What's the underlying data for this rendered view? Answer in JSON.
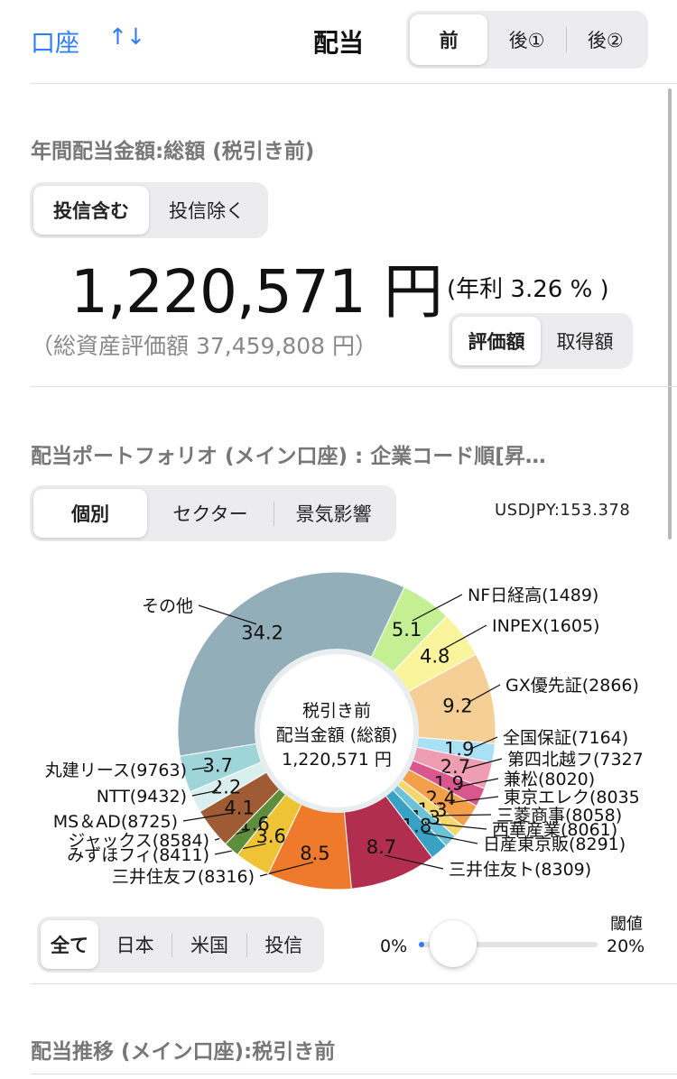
{
  "header": {
    "account_label": "口座",
    "sort_icon_glyph": "↑↓",
    "title": "配当",
    "tabs": [
      "前",
      "後①",
      "後②"
    ],
    "selected_tab": 0
  },
  "annual": {
    "section_title": "年間配当金額:総額 (税引き前)",
    "toggle": [
      "投信含む",
      "投信除く"
    ],
    "selected_toggle": 0,
    "amount": "1,220,571 円",
    "yield": "(年利 3.26 % )",
    "total_assets": "（総資産評価額 37,459,808 円）",
    "basis_toggle": [
      "評価額",
      "取得額"
    ],
    "selected_basis": 0
  },
  "portfolio": {
    "section_title": "配当ポートフォリオ (メイン口座) : 企業コード順[昇…",
    "view_tabs": [
      "個別",
      "セクター",
      "景気影響"
    ],
    "selected_view": 0,
    "fx": "USDJPY:153.378",
    "center_line1": "税引き前",
    "center_line2": "配当金額 (総額)",
    "center_line3": "1,220,571 円",
    "filter_tabs": [
      "全て",
      "日本",
      "米国",
      "投信"
    ],
    "selected_filter": 0,
    "threshold_label": "閾値",
    "slider_min": "0%",
    "slider_max": "20%",
    "slider_value_fraction": 0.03
  },
  "history": {
    "section_title": "配当推移 (メイン口座):税引き前"
  },
  "chart_data": {
    "type": "pie",
    "slices": [
      {
        "label": "NF日経高(1489)",
        "value": 5.1,
        "color": "#c4ef93"
      },
      {
        "label": "INPEX(1605)",
        "value": 4.8,
        "color": "#faf49d"
      },
      {
        "label": "GX優先証(2866)",
        "value": 9.2,
        "color": "#f5cf95"
      },
      {
        "label": "全国保証(7164)",
        "value": 1.9,
        "color": "#a9e0f6"
      },
      {
        "label": "第四北越フ(7327",
        "value": 2.7,
        "color": "#ef9db3"
      },
      {
        "label": "兼松(8020)",
        "value": 1.9,
        "color": "#d9578c"
      },
      {
        "label": "東京エレク(8035",
        "value": 2.4,
        "color": "#f4a04b"
      },
      {
        "label": "三菱商事(8058)",
        "value": 1.3,
        "color": "#f5d76e"
      },
      {
        "label": "西華産業(8061)",
        "value": 1.3,
        "color": "#6cc3d8"
      },
      {
        "label": "日産東京販(8291)",
        "value": 1.8,
        "color": "#39a1c4"
      },
      {
        "label": "三井住友ト(8309)",
        "value": 8.7,
        "color": "#b22e4e"
      },
      {
        "label": "三井住友フ(8316)",
        "value": 8.5,
        "color": "#ef7a2c"
      },
      {
        "label": "みずほフィ(8411)",
        "value": 3.6,
        "color": "#eec336"
      },
      {
        "label": "ジャックス(8584)",
        "value": 1.6,
        "color": "#5e8e3c"
      },
      {
        "label": "MS＆AD(8725)",
        "value": 4.1,
        "color": "#9e5b34"
      },
      {
        "label": "NTT(9432)",
        "value": 2.2,
        "color": "#d8efee"
      },
      {
        "label": "丸建リース(9763)",
        "value": 3.7,
        "color": "#9fd5d9"
      },
      {
        "label": "その他",
        "value": 34.2,
        "color": "#92aeb8"
      }
    ]
  }
}
